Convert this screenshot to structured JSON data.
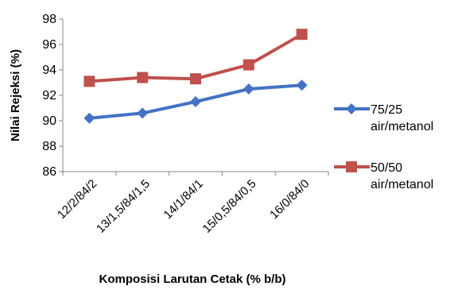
{
  "chart_data": {
    "type": "line",
    "categories": [
      "12/2/84/2",
      "13/1,5/84/1,5",
      "14/1/84/1",
      "15/0,5/84/0,5",
      "16/0/84/0"
    ],
    "series": [
      {
        "name": "75/25 air/metanol",
        "legend_lines": [
          "75/25",
          "air/metanol"
        ],
        "color": "#4472C4",
        "marker": "diamond",
        "values": [
          90.2,
          90.6,
          91.5,
          92.5,
          92.8
        ]
      },
      {
        "name": "50/50 air/metanol",
        "legend_lines": [
          "50/50",
          "air/metanol"
        ],
        "color": "#C0504D",
        "marker": "square",
        "values": [
          93.1,
          93.4,
          93.3,
          94.4,
          96.8
        ]
      }
    ],
    "xlabel": "Komposisi Larutan Cetak (% b/b)",
    "ylabel": "Nilai Rejeksi (%)",
    "ylim": [
      86,
      98
    ],
    "yticks": [
      86,
      88,
      90,
      92,
      94,
      96,
      98
    ],
    "legend_position": "right",
    "grid": false
  }
}
